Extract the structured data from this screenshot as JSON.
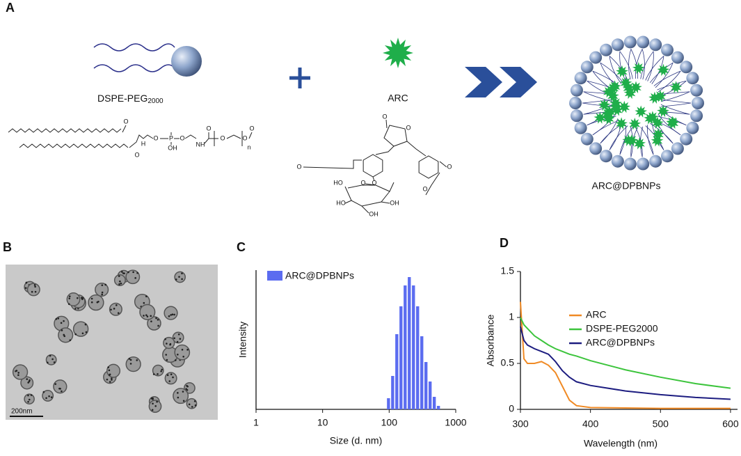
{
  "figure": {
    "panel_labels": [
      "A",
      "B",
      "C",
      "D"
    ],
    "panel_a": {
      "lipid_label": {
        "text": "DSPE-PEG",
        "subscript": "2000"
      },
      "drug_label": "ARC",
      "product_label": "ARC@DPBNPs",
      "lipid_atoms": [
        "O",
        "O",
        "H",
        "O",
        "P",
        "OH",
        "O",
        "NH",
        "O",
        "O",
        "O",
        "n",
        "O"
      ],
      "arc_atoms": [
        "O",
        "O",
        "O",
        "O",
        "O",
        "HO",
        "HO",
        "OH",
        "OH",
        "O",
        "O"
      ]
    },
    "panel_b": {
      "scale_bar": "200nm"
    }
  },
  "chart_data": [
    {
      "type": "histogram",
      "xscale": "log",
      "bins": [
        90.9,
        105,
        121.2,
        140,
        161.7,
        186.7,
        215.6,
        249,
        287.6,
        332.2,
        383.6,
        443,
        511.7,
        590.9
      ],
      "series": [
        {
          "name": "ARC@DPBNPs",
          "color": "#5b6cf0",
          "values": [
            1.6,
            4.8,
            10.8,
            14.8,
            17.8,
            19,
            17.8,
            14.8,
            10.5,
            6.8,
            4,
            1.8,
            0.5
          ]
        }
      ],
      "xlim": [
        1,
        1000
      ],
      "xticks": [
        1,
        10,
        100,
        1000
      ],
      "ylim": [
        0,
        20
      ],
      "xlabel": "Size (d. nm)",
      "ylabel": "Intensity",
      "legend": "upper left"
    },
    {
      "type": "line",
      "x": [
        300,
        305,
        310,
        320,
        330,
        340,
        350,
        360,
        370,
        380,
        400,
        450,
        500,
        550,
        600
      ],
      "series": [
        {
          "name": "ARC",
          "color": "#f08a24",
          "values": [
            1.17,
            0.55,
            0.5,
            0.5,
            0.52,
            0.48,
            0.4,
            0.25,
            0.1,
            0.04,
            0.02,
            0.015,
            0.01,
            0.01,
            0.01
          ]
        },
        {
          "name": "DSPE-PEG2000",
          "color": "#3cc43c",
          "values": [
            1.0,
            0.92,
            0.88,
            0.8,
            0.75,
            0.7,
            0.66,
            0.63,
            0.6,
            0.58,
            0.53,
            0.43,
            0.35,
            0.28,
            0.23
          ]
        },
        {
          "name": "ARC@DPBNPs",
          "color": "#1c1c80",
          "values": [
            0.9,
            0.75,
            0.7,
            0.66,
            0.63,
            0.6,
            0.52,
            0.42,
            0.35,
            0.3,
            0.26,
            0.2,
            0.16,
            0.13,
            0.11
          ]
        }
      ],
      "xlim": [
        300,
        610
      ],
      "xticks": [
        300,
        400,
        500,
        600
      ],
      "ylim": [
        0,
        1.5
      ],
      "yticks": [
        0,
        0.5,
        1,
        1.5
      ],
      "xlabel": "Wavelength (nm)",
      "ylabel": "Absorbance",
      "legend": "upper right"
    }
  ]
}
